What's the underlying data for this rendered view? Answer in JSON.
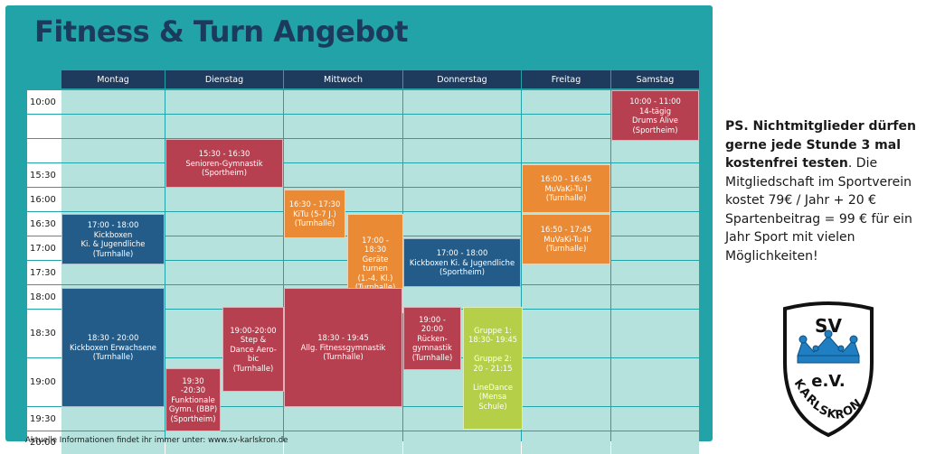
{
  "title": "Fitness & Turn Angebot",
  "days": [
    "Montag",
    "Dienstag",
    "Mittwoch",
    "Donnerstag",
    "Freitag",
    "Samstag"
  ],
  "times": [
    "10:00",
    "15:30",
    "16:00",
    "16:30",
    "17:00",
    "17:30",
    "18:00",
    "18:30",
    "19:00",
    "19:30",
    "20:00"
  ],
  "events": [
    {
      "day": "Samstag",
      "color": "red",
      "lines": [
        "10:00 - 11:00",
        "14-tägig",
        "Drums Alive",
        "(Sportheim)"
      ]
    },
    {
      "day": "Dienstag",
      "color": "red",
      "lines": [
        "15:30 - 16:30",
        "Senioren-Gymnastik",
        "(Sportheim)"
      ]
    },
    {
      "day": "Freitag",
      "color": "orange",
      "lines": [
        "16:00 - 16:45",
        "MuVaKi-Tu I",
        "(Turnhalle)"
      ]
    },
    {
      "day": "Mittwoch",
      "color": "orange",
      "lines": [
        "16:30 - 17:30",
        "KiTu (5-7 J.)",
        "(Turnhalle)"
      ]
    },
    {
      "day": "Montag",
      "color": "blue",
      "lines": [
        "17:00 - 18:00",
        "Kickboxen",
        "Ki. & Jugendliche",
        "(Turnhalle)"
      ]
    },
    {
      "day": "Mittwoch",
      "color": "orange",
      "lines": [
        "17:00 -",
        "18:30",
        "Geräte",
        "turnen",
        "(1.-4. Kl.)",
        "(Turnhalle)"
      ]
    },
    {
      "day": "Freitag",
      "color": "orange",
      "lines": [
        "16:50 - 17:45",
        "MuVaKi-Tu II",
        "(Turnhalle)"
      ]
    },
    {
      "day": "Donnerstag",
      "color": "blue",
      "lines": [
        "17:00 - 18:00",
        "Kickboxen Ki. & Jugendliche",
        "(Sportheim)"
      ]
    },
    {
      "day": "Montag",
      "color": "blue",
      "lines": [
        "18:30 - 20:00",
        "Kickboxen Erwachsene",
        "(Turnhalle)"
      ]
    },
    {
      "day": "Dienstag",
      "color": "red",
      "lines": [
        "19:00-20:00",
        "Step &",
        "Dance Aero-",
        "bic",
        "(Turnhalle)"
      ]
    },
    {
      "day": "Dienstag",
      "color": "red",
      "lines": [
        "19:30",
        "-20:30",
        "Funktionale",
        "Gymn. (BBP)",
        "(Sportheim)"
      ]
    },
    {
      "day": "Mittwoch",
      "color": "red",
      "lines": [
        "18:30 - 19:45",
        "Allg. Fitnessgymnastik",
        "(Turnhalle)"
      ]
    },
    {
      "day": "Donnerstag",
      "color": "red",
      "lines": [
        "19:00 -",
        "20:00",
        "Rücken-",
        "gymnastik",
        "(Turnhalle)"
      ]
    },
    {
      "day": "Donnerstag",
      "color": "green",
      "lines": [
        "Gruppe 1:",
        "18:30- 19:45",
        "",
        "Gruppe 2:",
        "20 - 21:15",
        "",
        "LineDance",
        "(Mensa",
        "Schule)"
      ]
    }
  ],
  "footnote": "Aktuelle Informationen findet ihr immer unter: www.sv-karlskron.de",
  "note": {
    "bold": "PS. Nichtmitglieder dürfen gerne jede Stunde 3 mal kostenfrei testen",
    "text": ". Die Mitgliedschaft im Sportverein kostet 79€ / Jahr + 20 € Spartenbeitrag = 99 € für ein Jahr Sport mit vielen Möglichkeiten!"
  },
  "logo": {
    "top": "SV",
    "middle": "e.V.",
    "bottom": "KARLSKRON"
  },
  "colors": {
    "panel": "#21a3a8",
    "header": "#1e3a5c",
    "cell": "#b6e2de",
    "blue": "#245c89",
    "red": "#b6404f",
    "orange": "#eb8a35",
    "green": "#b5cf48"
  }
}
